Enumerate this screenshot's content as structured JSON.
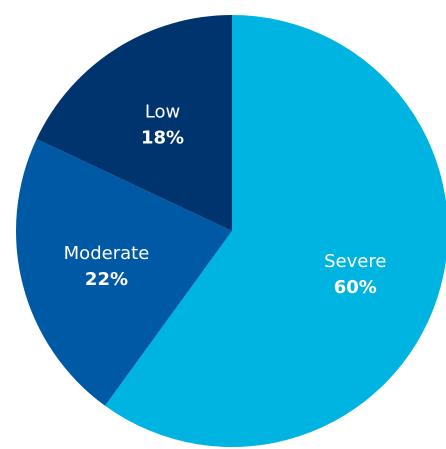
{
  "chart_data": {
    "type": "pie",
    "title": "",
    "slices": [
      {
        "label": "Severe",
        "value": 60,
        "display": "60%",
        "color": "#00B4E1"
      },
      {
        "label": "Moderate",
        "value": 22,
        "display": "22%",
        "color": "#0059A5"
      },
      {
        "label": "Low",
        "value": 18,
        "display": "18%",
        "color": "#00346E"
      }
    ],
    "start_angle_deg": 0,
    "direction": "clockwise",
    "legend": "none",
    "labels_inside": true
  }
}
